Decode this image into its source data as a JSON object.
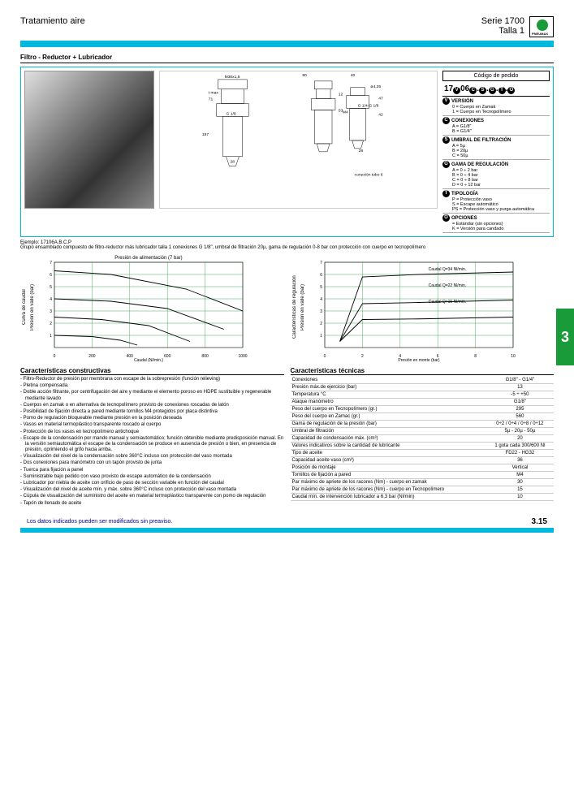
{
  "header": {
    "left": "Tratamiento aire",
    "right1": "Serie 1700",
    "right2": "Talla 1",
    "logo_brand": "PNEUMAX"
  },
  "section_title": "Filtro - Reductor + Lubricador",
  "drawing": {
    "dims": [
      "M30x1,5",
      "80",
      "40",
      "ø4,25",
      "71",
      "t max",
      "53",
      "47",
      "12",
      "42",
      "157",
      "G 1/8",
      "28",
      "M4",
      "G 1/4-G 1/8",
      "28",
      "conexión tubo 6"
    ]
  },
  "order_code": {
    "title": "Código de pedido",
    "main_prefix": "17",
    "main_letters": [
      "V",
      "06",
      "C",
      ".",
      "S",
      ".",
      "G",
      ".",
      "T",
      ".",
      "O"
    ],
    "sections": [
      {
        "tag": "V",
        "head": "VERSIÓN",
        "lines": [
          "0 = Cuerpo en Zamak",
          "1 = Cuerpo en Tecnopolímero"
        ]
      },
      {
        "tag": "C",
        "head": "CONEXIONES",
        "lines": [
          "A = G1/8\"",
          "B = G1/4\""
        ]
      },
      {
        "tag": "S",
        "head": "UMBRAL DE FILTRACIÓN",
        "lines": [
          "A = 5µ",
          "B = 20µ",
          "C = 50µ"
        ]
      },
      {
        "tag": "G",
        "head": "GAMA DE REGULACIÓN",
        "lines": [
          "A = 0 ÷ 2 bar",
          "B = 0 ÷ 4 bar",
          "C = 0 ÷ 8 bar",
          "D = 0 ÷ 12 bar"
        ]
      },
      {
        "tag": "T",
        "head": "TIPOLOGÍA",
        "lines": [
          "P = Protección vaso",
          "S = Escape automático",
          "PS = Protección vaso y purga automática"
        ]
      },
      {
        "tag": "O",
        "head": "OPCIONES",
        "lines": [
          "  = Estándar (sin opciones)",
          "K = Versión para candado"
        ]
      }
    ]
  },
  "example": {
    "line1": "Ejemplo: 17106A.B.C.P",
    "line2": "Grupo ensamblado compuesto de filtro-reductor más lubricador talla 1 conexiones G 1/8\", umbral de filtración 20µ, gama de regulación 0-8 bar con protección con cuerpo en tecnopolímero"
  },
  "chart1": {
    "type": "line",
    "title": "Presión de alimentación  (7 bar)",
    "ylabel_outer": "Curva de caudal",
    "ylabel": "Presión en valle  (bar)",
    "xlabel": "Caudal (Nl/min.)",
    "x_ticks": [
      0,
      200,
      400,
      600,
      800,
      1000
    ],
    "y_ticks": [
      1,
      2,
      3,
      4,
      5,
      6,
      7
    ],
    "xlim": [
      0,
      1000
    ],
    "ylim": [
      0,
      7
    ],
    "grid_color": "#1a9b3a",
    "line_color": "#000000",
    "curves": [
      [
        [
          0,
          6.3
        ],
        [
          300,
          6.0
        ],
        [
          700,
          4.8
        ],
        [
          1000,
          3.0
        ]
      ],
      [
        [
          0,
          4.0
        ],
        [
          300,
          3.8
        ],
        [
          600,
          3.2
        ],
        [
          900,
          1.5
        ]
      ],
      [
        [
          0,
          2.5
        ],
        [
          250,
          2.3
        ],
        [
          500,
          1.8
        ],
        [
          720,
          0.5
        ]
      ],
      [
        [
          0,
          1.0
        ],
        [
          200,
          0.9
        ],
        [
          350,
          0.6
        ],
        [
          440,
          0.2
        ]
      ]
    ]
  },
  "chart2": {
    "type": "line",
    "title": "",
    "ylabel_outer": "Características de regulación",
    "ylabel": "Presión en valle  (bar)",
    "xlabel": "Presión en monte  (bar)",
    "x_ticks": [
      0,
      2,
      4,
      6,
      8,
      10
    ],
    "y_ticks": [
      1,
      2,
      3,
      4,
      5,
      6,
      7
    ],
    "xlim": [
      0,
      10
    ],
    "ylim": [
      0,
      7
    ],
    "grid_color": "#1a9b3a",
    "line_color": "#000000",
    "annotations": [
      "Caudal  Q=34 Nl/min.",
      "Caudal  Q=22 Nl/min.",
      "Caudal  Q=15 Nl/min."
    ],
    "curves": [
      [
        [
          0.8,
          0.5
        ],
        [
          2,
          5.8
        ],
        [
          5,
          6.0
        ],
        [
          10,
          6.2
        ]
      ],
      [
        [
          0.8,
          0.5
        ],
        [
          2,
          3.6
        ],
        [
          5,
          3.7
        ],
        [
          10,
          3.9
        ]
      ],
      [
        [
          0.8,
          0.5
        ],
        [
          2,
          2.3
        ],
        [
          5,
          2.35
        ],
        [
          10,
          2.5
        ]
      ]
    ]
  },
  "section_tab": "3",
  "constructive": {
    "title": "Características constructivas",
    "items": [
      "Filtro-Reductor de presión por membrana con escape de la sobrepresión (función relieving)",
      "Pletina compensada.",
      "Doble acción filtrante, por centrifugación del aire y mediante el elemento poroso en HDPE sustituible y regenerable mediante lavado",
      "Cuerpos en zamak o en alternativa de tecnopolímero provisto de conexiones roscadas de latón",
      "Posibilidad de fijación directa a pared mediante tornillos M4 protegidos por placa distintiva",
      "Pomo de regulación bloqueable mediante presión en la posición deseada",
      "Vasos en material termoplástico transparente roscado al cuerpo",
      "Protección de los vasos en tecnopolímero antichoque",
      "Escape de la condensación por mando manual y semiautomático; función obtenible mediante predisposición manual. En la versión semiautomática el escape de la condensación se produce en ausencia de presión o bien, en presencia de presión, oprimiendo el grifo hacia arriba.",
      "Visualización del nivel de la condensación sobre 360°C incluso con protección del vaso montada",
      "Dos conexiones para manómetro con un tapón provisto de junta",
      "Tuerca para fijación a panel",
      "Suministrable bajo pedido con vaso provisto de escape automático de la condensación",
      "Lubricador por niebla de aceite con orificio de paso de sección variable en función del caudal",
      "Visualización del nivel de aceite mín. y máx. sobre 360°C incluso con protección del vaso montada",
      "Cúpula de visualización del suministro del aceite en material termoplástico transparente con pomo de regulación",
      "Tapón de llenado de aceite"
    ]
  },
  "technical": {
    "title": "Características técnicas",
    "rows": [
      [
        "Conexiones",
        "G1/8\" - G1/4\""
      ],
      [
        "Presión máx.de ejercicio (bar)",
        "13"
      ],
      [
        "Temperatura °C",
        "-5  ÷  +50"
      ],
      [
        "Ataque manómetro",
        "G1/8\""
      ],
      [
        "Peso del cuerpo en Tecnopolímero (gr.)",
        "295"
      ],
      [
        "Peso del cuerpo en Zamac (gr.)",
        "560"
      ],
      [
        "Gama de regulación de la presión (bar)",
        "0÷2 / 0÷4 / 0÷8 / 0÷12"
      ],
      [
        "Umbral de filtración",
        "5µ - 20µ - 50µ"
      ],
      [
        "Capacidad de condensación máx. (cm³)",
        "20"
      ],
      [
        "Valores indicativos sobre la cantidad de lubricante",
        "1 gota cada 300/600 Nl"
      ],
      [
        "Tipo de aceite",
        "FD22 - HG32"
      ],
      [
        "Capacidad aceite vaso (cm³)",
        "36"
      ],
      [
        "Posición de montaje",
        "Vertical"
      ],
      [
        "Tornillos de fijación a pared",
        "M4"
      ],
      [
        "Par máximo de apriete de los racores (Nm) - cuerpo en zamak",
        "30"
      ],
      [
        "Par máximo de apriete de los racores (Nm) - cuerpo en Tecnopolímero",
        "15"
      ],
      [
        "Caudal mín. de intervención lubricador a 6,3 bar (Nl/min)",
        "10"
      ]
    ]
  },
  "footer": {
    "note": "Los datos indicados pueden ser modificados sin preaviso.",
    "page": "3.15"
  }
}
